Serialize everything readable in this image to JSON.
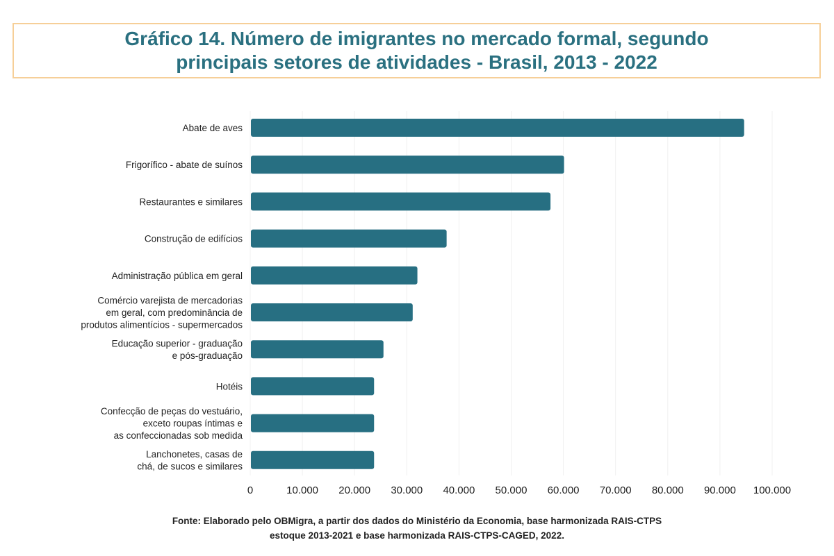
{
  "chart_data": {
    "type": "bar",
    "orientation": "horizontal",
    "title_lines": [
      "Gráfico 14. Número de imigrantes no mercado formal, segundo",
      "principais setores de atividades - Brasil, 2013 - 2022"
    ],
    "categories": [
      [
        "Abate de aves"
      ],
      [
        "Frigorífico - abate de suínos"
      ],
      [
        "Restaurantes e similares"
      ],
      [
        "Construção de edifícios"
      ],
      [
        "Administração pública em geral"
      ],
      [
        "Comércio varejista de mercadorias",
        "em geral, com predominância de",
        "produtos alimentícios - supermercados"
      ],
      [
        "Educação superior - graduação",
        "e pós-graduação"
      ],
      [
        "Hotéis"
      ],
      [
        "Confecção de peças do vestuário,",
        "exceto roupas íntimas e",
        "as confeccionadas sob medida"
      ],
      [
        "Lanchonetes, casas de",
        "chá, de sucos e similares"
      ]
    ],
    "values": [
      94500,
      60000,
      57400,
      37500,
      31900,
      31000,
      25400,
      23600,
      23600,
      23600
    ],
    "xlim": [
      0,
      100000
    ],
    "xticks": [
      0,
      10000,
      20000,
      30000,
      40000,
      50000,
      60000,
      70000,
      80000,
      90000,
      100000
    ],
    "xtick_labels": [
      "0",
      "10.000",
      "20.000",
      "30.000",
      "40.000",
      "50.000",
      "60.000",
      "70.000",
      "80.000",
      "90.000",
      "100.000"
    ],
    "grid": "vertical, faint",
    "legend": "none",
    "bar_color": "#276f82",
    "title_color": "#2a7080",
    "title_border_color": "#f6cf98"
  },
  "source_lines": [
    "Fonte: Elaborado pelo OBMigra, a partir dos dados do Ministério da Economia, base harmonizada RAIS-CTPS",
    "estoque 2013-2021 e base harmonizada RAIS-CTPS-CAGED, 2022."
  ]
}
